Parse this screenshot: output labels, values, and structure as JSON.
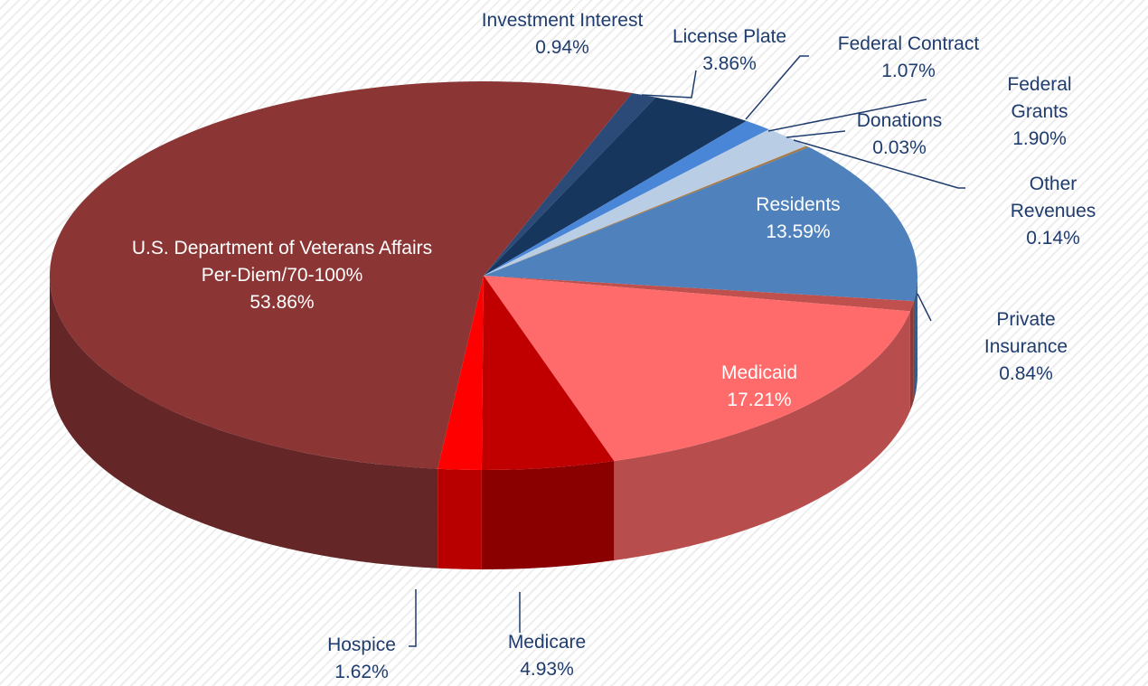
{
  "chart_data": {
    "type": "pie",
    "categories": [
      "Investment Interest",
      "License Plate",
      "Federal Contract",
      "Federal Grants",
      "Donations",
      "Other Revenues",
      "Residents",
      "Private Insurance",
      "Medicaid",
      "Medicare",
      "Hospice",
      "U.S. Department of Veterans Affairs\nPer-Diem/70-100%"
    ],
    "values": [
      0.94,
      3.86,
      1.07,
      1.9,
      0.03,
      0.14,
      13.59,
      0.84,
      17.21,
      4.93,
      1.62,
      53.86
    ],
    "value_labels": [
      "0.94%",
      "3.86%",
      "1.07%",
      "1.90%",
      "0.03%",
      "0.14%",
      "13.59%",
      "0.84%",
      "17.21%",
      "4.93%",
      "1.62%",
      "53.86%"
    ],
    "colors": [
      "#2b4a78",
      "#17365d",
      "#4a86d8",
      "#b9cde5",
      "#c8c8c8",
      "#a57a48",
      "#4f81bd",
      "#c0504d",
      "#ff6b6b",
      "#c00000",
      "#ff0000",
      "#8b3535"
    ]
  }
}
